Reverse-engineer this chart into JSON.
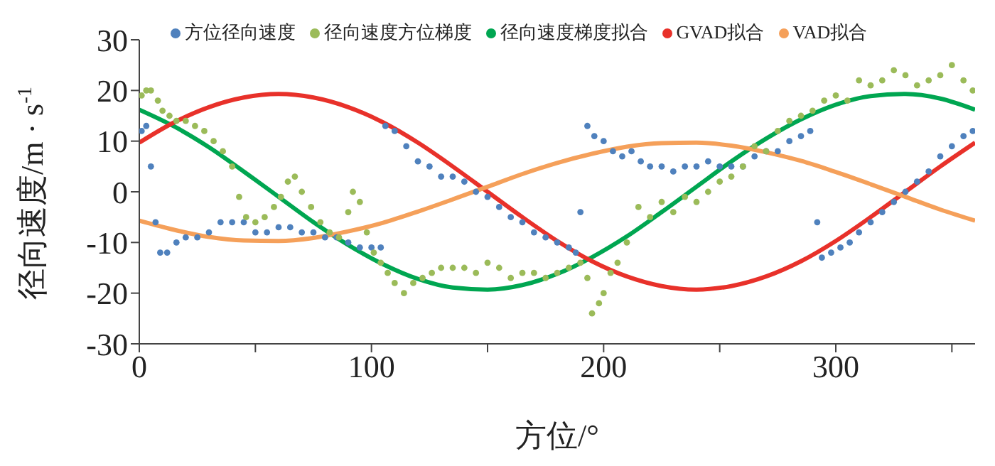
{
  "chart_data": {
    "type": "scatter",
    "xlabel": "方位/°",
    "ylabel": "径向速度/m · s$^{-1}$",
    "xlim": [
      0,
      360
    ],
    "ylim": [
      -30,
      30
    ],
    "xticks": [
      0,
      {
        "value": 50,
        "label": null
      },
      100,
      {
        "value": 150,
        "label": null
      },
      200,
      {
        "value": 250,
        "label": null
      },
      300,
      {
        "value": 350,
        "label": null
      }
    ],
    "yticks": [
      -30,
      -20,
      -10,
      0,
      10,
      20,
      30
    ],
    "grid": false,
    "legend": "top",
    "series": [
      {
        "name": "方位径向速度",
        "marker": "circle",
        "color": "#4f81bd",
        "x": [
          1,
          3,
          5,
          7,
          9,
          12,
          16,
          20,
          25,
          30,
          35,
          40,
          45,
          50,
          55,
          60,
          65,
          70,
          75,
          80,
          85,
          90,
          95,
          100,
          104,
          106,
          110,
          115,
          120,
          125,
          130,
          135,
          140,
          145,
          150,
          155,
          160,
          165,
          170,
          175,
          180,
          185,
          188,
          190,
          193,
          196,
          200,
          204,
          208,
          212,
          216,
          220,
          225,
          230,
          235,
          240,
          245,
          250,
          255,
          260,
          265,
          270,
          275,
          280,
          285,
          289,
          292,
          294,
          298,
          302,
          306,
          310,
          315,
          320,
          325,
          330,
          335,
          340,
          345,
          350,
          355,
          359
        ],
        "values": [
          12,
          13,
          5,
          -6,
          -12,
          -12,
          -10,
          -9,
          -9,
          -8,
          -6,
          -6,
          -6,
          -8,
          -8,
          -7,
          -7,
          -8,
          -8,
          -9,
          -9,
          -10,
          -11,
          -11,
          -11,
          13,
          12,
          9,
          6,
          5,
          3,
          3,
          2,
          0,
          -1,
          -3,
          -5,
          -6,
          -8,
          -9,
          -10,
          -11,
          -12,
          -4,
          13,
          11,
          10,
          8,
          7,
          8,
          6,
          5,
          5,
          4,
          5,
          5,
          6,
          5,
          5,
          5,
          7,
          8,
          8,
          10,
          11,
          12,
          -6,
          -13,
          -12,
          -11,
          -10,
          -8,
          -6,
          -4,
          -2,
          0,
          2,
          4,
          7,
          9,
          11,
          12
        ]
      },
      {
        "name": "径向速度方位梯度",
        "marker": "circle",
        "color": "#9bbb59",
        "x": [
          1,
          3,
          5,
          8,
          10,
          13,
          16,
          20,
          24,
          28,
          32,
          36,
          40,
          43,
          46,
          50,
          54,
          58,
          61,
          64,
          67,
          70,
          74,
          78,
          82,
          86,
          90,
          92,
          95,
          98,
          101,
          104,
          107,
          110,
          114,
          118,
          122,
          126,
          130,
          135,
          140,
          145,
          150,
          155,
          160,
          165,
          170,
          175,
          180,
          185,
          190,
          193,
          195,
          198,
          200,
          203,
          206,
          210,
          215,
          220,
          225,
          230,
          235,
          240,
          245,
          250,
          255,
          260,
          265,
          270,
          275,
          280,
          285,
          290,
          295,
          300,
          305,
          310,
          315,
          320,
          325,
          330,
          335,
          340,
          345,
          350,
          355,
          359
        ],
        "values": [
          19,
          20,
          20,
          18,
          16,
          15,
          14,
          14,
          13,
          12,
          10,
          8,
          5,
          -1,
          -5,
          -6,
          -5,
          -3,
          -1,
          2,
          3,
          0,
          -3,
          -6,
          -8,
          -9,
          -4,
          0,
          -2,
          -8,
          -12,
          -14,
          -16,
          -18,
          -20,
          -18,
          -17,
          -16,
          -15,
          -15,
          -15,
          -16,
          -14,
          -15,
          -17,
          -16,
          -16,
          -17,
          -16,
          -15,
          -14,
          -17,
          -24,
          -22,
          -20,
          -16,
          -14,
          -10,
          -3,
          -5,
          -2,
          -4,
          -1,
          -2,
          0,
          2,
          3,
          5,
          9,
          8,
          12,
          14,
          15,
          16,
          18,
          19,
          18,
          22,
          21,
          22,
          24,
          23,
          21,
          22,
          23,
          25,
          22,
          20
        ]
      },
      {
        "name": "径向速度梯度拟合",
        "type": "line",
        "marker": "none",
        "color": "#00a651",
        "x": [
          0,
          15,
          30,
          45,
          60,
          75,
          90,
          105,
          120,
          135,
          150,
          165,
          180,
          195,
          210,
          225,
          240,
          255,
          270,
          285,
          300,
          315,
          330,
          345,
          360
        ],
        "values": [
          16.2,
          12.9,
          8.8,
          4.0,
          -1.0,
          -6.0,
          -10.5,
          -14.3,
          -17.2,
          -18.9,
          -19.3,
          -18.4,
          -16.2,
          -12.9,
          -8.8,
          -4.0,
          1.0,
          6.0,
          10.5,
          14.3,
          17.2,
          18.9,
          19.3,
          18.4,
          16.2
        ]
      },
      {
        "name": "GVAD拟合",
        "type": "line",
        "marker": "none",
        "color": "#e8312a",
        "x": [
          0,
          15,
          30,
          45,
          60,
          75,
          90,
          105,
          120,
          135,
          150,
          165,
          180,
          195,
          210,
          225,
          240,
          255,
          270,
          285,
          300,
          315,
          330,
          345,
          360
        ],
        "values": [
          9.7,
          13.7,
          16.7,
          18.6,
          19.3,
          18.6,
          16.7,
          13.7,
          9.7,
          5.0,
          0,
          -5.0,
          -9.7,
          -13.7,
          -16.7,
          -18.6,
          -19.3,
          -18.6,
          -16.7,
          -13.7,
          -9.7,
          -5.0,
          0,
          5.0,
          9.7
        ]
      },
      {
        "name": "VAD拟合",
        "type": "line",
        "marker": "none",
        "color": "#f5a05a",
        "x": [
          0,
          15,
          30,
          45,
          60,
          75,
          90,
          105,
          120,
          135,
          150,
          165,
          180,
          195,
          210,
          225,
          240,
          255,
          270,
          285,
          300,
          315,
          330,
          345,
          360
        ],
        "values": [
          -5.7,
          -7.5,
          -8.9,
          -9.6,
          -9.7,
          -9.1,
          -7.8,
          -6.1,
          -3.9,
          -1.5,
          1.0,
          3.5,
          5.7,
          7.5,
          8.9,
          9.6,
          9.7,
          9.1,
          7.8,
          6.1,
          3.9,
          1.5,
          -1.0,
          -3.5,
          -5.7
        ]
      }
    ]
  }
}
